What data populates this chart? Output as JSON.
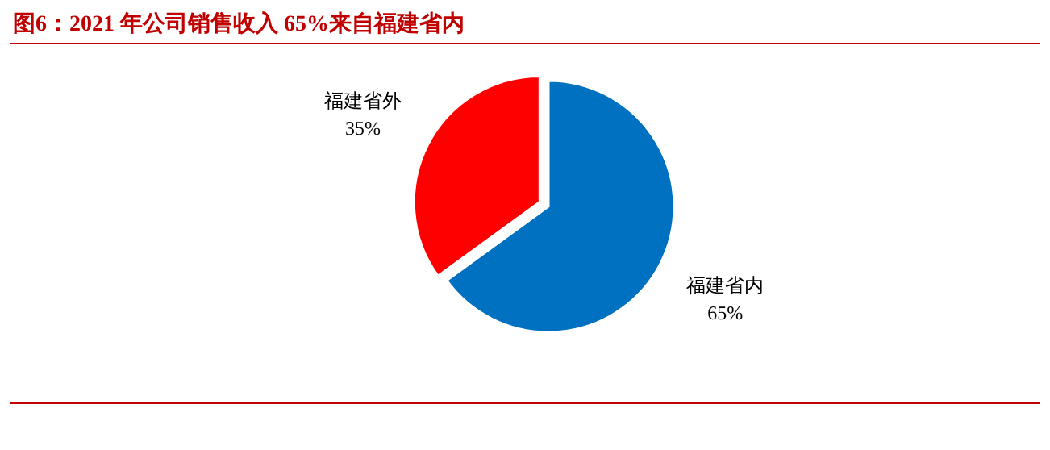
{
  "chart_data": {
    "type": "pie",
    "title": "图6：2021 年公司销售收入 65%来自福建省内",
    "categories": [
      "福建省内",
      "福建省外"
    ],
    "values": [
      65,
      35
    ],
    "colors": [
      "#0070c0",
      "#ff0000"
    ],
    "value_labels": [
      "65%",
      "35%"
    ],
    "legend": false
  }
}
